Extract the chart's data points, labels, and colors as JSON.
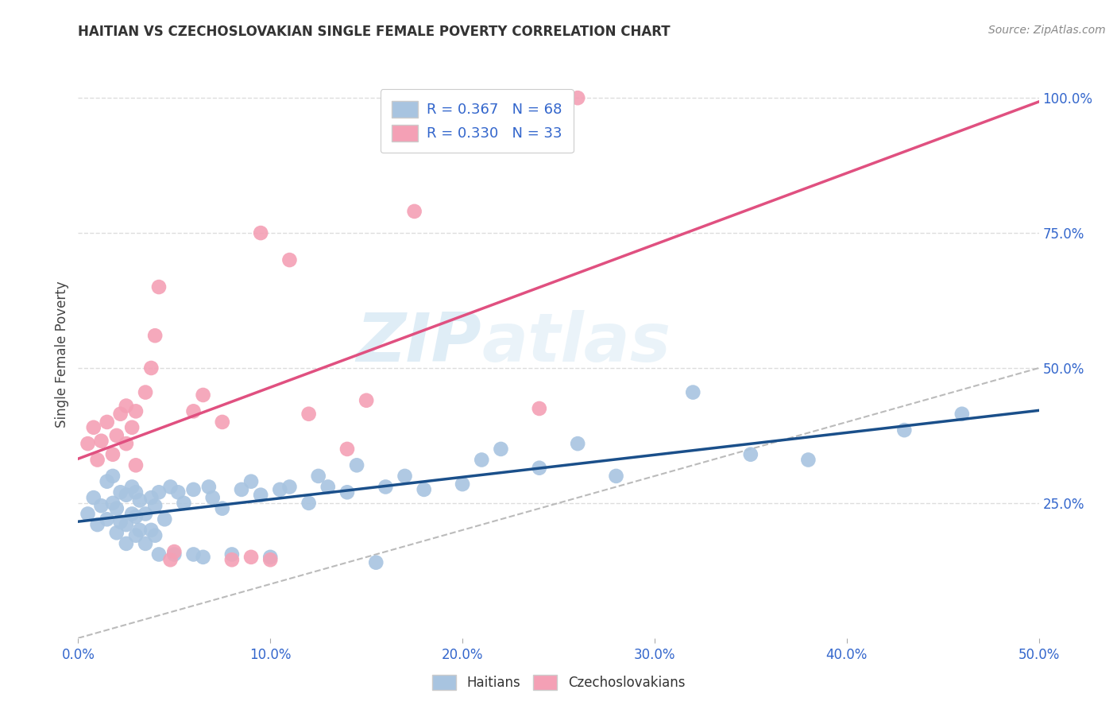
{
  "title": "HAITIAN VS CZECHOSLOVAKIAN SINGLE FEMALE POVERTY CORRELATION CHART",
  "source": "Source: ZipAtlas.com",
  "ylabel": "Single Female Poverty",
  "xlim": [
    0.0,
    0.5
  ],
  "ylim": [
    0.0,
    1.05
  ],
  "xtick_labels": [
    "0.0%",
    "",
    "10.0%",
    "",
    "20.0%",
    "",
    "30.0%",
    "",
    "40.0%",
    "",
    "50.0%"
  ],
  "xtick_vals": [
    0.0,
    0.05,
    0.1,
    0.15,
    0.2,
    0.25,
    0.3,
    0.35,
    0.4,
    0.45,
    0.5
  ],
  "ytick_labels": [
    "100.0%",
    "75.0%",
    "50.0%",
    "25.0%"
  ],
  "ytick_vals": [
    1.0,
    0.75,
    0.5,
    0.25
  ],
  "blue_color": "#a8c4e0",
  "pink_color": "#f4a0b5",
  "blue_line_color": "#1a4f8a",
  "pink_line_color": "#e05080",
  "diagonal_color": "#bbbbbb",
  "watermark_zip": "ZIP",
  "watermark_atlas": "atlas",
  "R_blue": 0.367,
  "N_blue": 68,
  "R_pink": 0.33,
  "N_pink": 33,
  "legend_blue_label": "Haitians",
  "legend_pink_label": "Czechoslovakians",
  "blue_scatter_x": [
    0.005,
    0.008,
    0.01,
    0.012,
    0.015,
    0.015,
    0.018,
    0.018,
    0.02,
    0.02,
    0.022,
    0.022,
    0.025,
    0.025,
    0.025,
    0.028,
    0.028,
    0.03,
    0.03,
    0.03,
    0.032,
    0.032,
    0.035,
    0.035,
    0.038,
    0.038,
    0.04,
    0.04,
    0.042,
    0.042,
    0.045,
    0.048,
    0.05,
    0.052,
    0.055,
    0.06,
    0.06,
    0.065,
    0.068,
    0.07,
    0.075,
    0.08,
    0.085,
    0.09,
    0.095,
    0.1,
    0.105,
    0.11,
    0.12,
    0.125,
    0.13,
    0.14,
    0.145,
    0.155,
    0.16,
    0.17,
    0.18,
    0.2,
    0.21,
    0.22,
    0.24,
    0.26,
    0.28,
    0.32,
    0.35,
    0.38,
    0.43,
    0.46
  ],
  "blue_scatter_y": [
    0.23,
    0.26,
    0.21,
    0.245,
    0.22,
    0.29,
    0.25,
    0.3,
    0.195,
    0.24,
    0.215,
    0.27,
    0.175,
    0.21,
    0.265,
    0.23,
    0.28,
    0.19,
    0.225,
    0.27,
    0.2,
    0.255,
    0.175,
    0.23,
    0.2,
    0.26,
    0.19,
    0.245,
    0.155,
    0.27,
    0.22,
    0.28,
    0.155,
    0.27,
    0.25,
    0.155,
    0.275,
    0.15,
    0.28,
    0.26,
    0.24,
    0.155,
    0.275,
    0.29,
    0.265,
    0.15,
    0.275,
    0.28,
    0.25,
    0.3,
    0.28,
    0.27,
    0.32,
    0.14,
    0.28,
    0.3,
    0.275,
    0.285,
    0.33,
    0.35,
    0.315,
    0.36,
    0.3,
    0.455,
    0.34,
    0.33,
    0.385,
    0.415
  ],
  "pink_scatter_x": [
    0.005,
    0.008,
    0.01,
    0.012,
    0.015,
    0.018,
    0.02,
    0.022,
    0.025,
    0.025,
    0.028,
    0.03,
    0.03,
    0.035,
    0.038,
    0.04,
    0.042,
    0.048,
    0.05,
    0.06,
    0.065,
    0.075,
    0.08,
    0.09,
    0.095,
    0.1,
    0.11,
    0.12,
    0.14,
    0.15,
    0.175,
    0.24,
    0.26
  ],
  "pink_scatter_y": [
    0.36,
    0.39,
    0.33,
    0.365,
    0.4,
    0.34,
    0.375,
    0.415,
    0.36,
    0.43,
    0.39,
    0.32,
    0.42,
    0.455,
    0.5,
    0.56,
    0.65,
    0.145,
    0.16,
    0.42,
    0.45,
    0.4,
    0.145,
    0.15,
    0.75,
    0.145,
    0.7,
    0.415,
    0.35,
    0.44,
    0.79,
    0.425,
    1.0
  ],
  "background_color": "#ffffff",
  "grid_color": "#dddddd"
}
